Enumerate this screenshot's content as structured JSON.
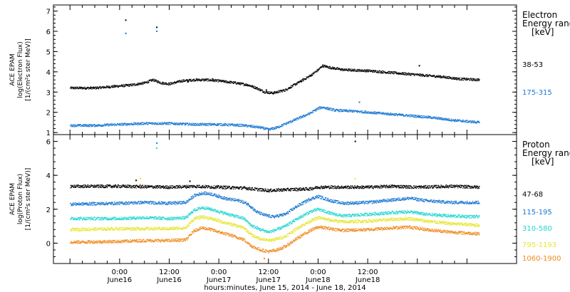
{
  "chart_data": [
    {
      "type": "scatter",
      "panel": "electron",
      "ylabel": [
        "ACE EPAM",
        "log(Electron Flux)",
        "[1/(cm²s ster MeV)]"
      ],
      "ylim": [
        0.9,
        7.3
      ],
      "yticks": [
        1,
        2,
        3,
        4,
        5,
        6,
        7
      ],
      "legend_title": [
        "Electron",
        "Energy range",
        "[keV]"
      ],
      "grid": false,
      "series": [
        {
          "name": "38-53",
          "color": "#000000",
          "points": [
            [
              -12,
              3.2
            ],
            [
              -6,
              3.2
            ],
            [
              0,
              3.3
            ],
            [
              3,
              3.35
            ],
            [
              6,
              3.45
            ],
            [
              8,
              3.6
            ],
            [
              10,
              3.45
            ],
            [
              12,
              3.4
            ],
            [
              15,
              3.55
            ],
            [
              18,
              3.6
            ],
            [
              21,
              3.6
            ],
            [
              24,
              3.55
            ],
            [
              28,
              3.45
            ],
            [
              31,
              3.35
            ],
            [
              33,
              3.2
            ],
            [
              35,
              3.0
            ],
            [
              37,
              2.95
            ],
            [
              40,
              3.1
            ],
            [
              43,
              3.45
            ],
            [
              46,
              3.8
            ],
            [
              48,
              4.1
            ],
            [
              49,
              4.3
            ],
            [
              51,
              4.2
            ],
            [
              54,
              4.1
            ],
            [
              60,
              4.05
            ],
            [
              66,
              3.95
            ],
            [
              72,
              3.85
            ],
            [
              78,
              3.75
            ],
            [
              82,
              3.65
            ],
            [
              87,
              3.6
            ]
          ],
          "outliers": [
            [
              1.5,
              6.55
            ],
            [
              9,
              6.2
            ],
            [
              16.5,
              3.5
            ],
            [
              22.5,
              3.65
            ],
            [
              35.5,
              3.1
            ],
            [
              72.5,
              4.3
            ]
          ]
        },
        {
          "name": "175-315",
          "color": "#1a78d2",
          "points": [
            [
              -12,
              1.35
            ],
            [
              -6,
              1.35
            ],
            [
              0,
              1.4
            ],
            [
              6,
              1.45
            ],
            [
              12,
              1.45
            ],
            [
              18,
              1.4
            ],
            [
              24,
              1.4
            ],
            [
              30,
              1.35
            ],
            [
              34,
              1.25
            ],
            [
              36,
              1.15
            ],
            [
              38,
              1.25
            ],
            [
              42,
              1.6
            ],
            [
              46,
              1.95
            ],
            [
              48,
              2.2
            ],
            [
              49,
              2.25
            ],
            [
              52,
              2.1
            ],
            [
              57,
              2.05
            ],
            [
              63,
              1.95
            ],
            [
              69,
              1.85
            ],
            [
              75,
              1.75
            ],
            [
              81,
              1.6
            ],
            [
              87,
              1.5
            ]
          ],
          "outliers": [
            [
              1.5,
              5.9
            ],
            [
              9,
              6.0
            ],
            [
              58,
              2.5
            ],
            [
              72.5,
              1.8
            ]
          ]
        }
      ]
    },
    {
      "type": "scatter",
      "panel": "proton",
      "ylabel": [
        "ACE EPAM",
        "log(Proton Flux)",
        "[1/(cm²s ster MeV)]"
      ],
      "ylim": [
        -1.2,
        6.4
      ],
      "yticks": [
        0,
        2,
        4,
        6
      ],
      "legend_title": [
        "Proton",
        "Energy range",
        "[keV]"
      ],
      "grid": false,
      "series": [
        {
          "name": "47-68",
          "color": "#000000",
          "points": [
            [
              -12,
              3.35
            ],
            [
              0,
              3.35
            ],
            [
              12,
              3.3
            ],
            [
              18,
              3.35
            ],
            [
              24,
              3.3
            ],
            [
              30,
              3.25
            ],
            [
              34,
              3.15
            ],
            [
              36,
              3.1
            ],
            [
              40,
              3.15
            ],
            [
              46,
              3.2
            ],
            [
              48,
              3.3
            ],
            [
              54,
              3.3
            ],
            [
              60,
              3.3
            ],
            [
              66,
              3.35
            ],
            [
              72,
              3.3
            ],
            [
              80,
              3.35
            ],
            [
              87,
              3.3
            ]
          ],
          "outliers": [
            [
              4,
              3.7
            ],
            [
              17,
              3.65
            ],
            [
              57,
              6.0
            ]
          ]
        },
        {
          "name": "115-195",
          "color": "#1a78d2",
          "points": [
            [
              -12,
              2.3
            ],
            [
              0,
              2.35
            ],
            [
              6,
              2.4
            ],
            [
              12,
              2.35
            ],
            [
              16,
              2.4
            ],
            [
              18,
              2.8
            ],
            [
              20,
              2.95
            ],
            [
              22,
              2.9
            ],
            [
              24,
              2.75
            ],
            [
              26,
              2.6
            ],
            [
              29,
              2.5
            ],
            [
              31,
              2.3
            ],
            [
              33,
              1.85
            ],
            [
              35,
              1.65
            ],
            [
              37,
              1.55
            ],
            [
              40,
              1.7
            ],
            [
              43,
              2.2
            ],
            [
              46,
              2.6
            ],
            [
              48,
              2.75
            ],
            [
              51,
              2.5
            ],
            [
              54,
              2.35
            ],
            [
              60,
              2.4
            ],
            [
              66,
              2.55
            ],
            [
              70,
              2.65
            ],
            [
              74,
              2.5
            ],
            [
              80,
              2.4
            ],
            [
              87,
              2.4
            ]
          ],
          "outliers": [
            [
              9,
              5.9
            ]
          ]
        },
        {
          "name": "310-580",
          "color": "#22d6d0",
          "points": [
            [
              -12,
              1.45
            ],
            [
              0,
              1.45
            ],
            [
              6,
              1.5
            ],
            [
              12,
              1.45
            ],
            [
              16,
              1.5
            ],
            [
              18,
              1.95
            ],
            [
              20,
              2.1
            ],
            [
              22,
              2.0
            ],
            [
              24,
              1.85
            ],
            [
              27,
              1.65
            ],
            [
              30,
              1.45
            ],
            [
              32,
              1.0
            ],
            [
              34,
              0.8
            ],
            [
              36,
              0.65
            ],
            [
              38,
              0.8
            ],
            [
              40,
              1.0
            ],
            [
              43,
              1.45
            ],
            [
              46,
              1.85
            ],
            [
              48,
              2.0
            ],
            [
              51,
              1.75
            ],
            [
              54,
              1.6
            ],
            [
              60,
              1.7
            ],
            [
              66,
              1.8
            ],
            [
              70,
              1.85
            ],
            [
              74,
              1.7
            ],
            [
              80,
              1.6
            ],
            [
              87,
              1.55
            ]
          ],
          "outliers": [
            [
              9,
              5.6
            ]
          ]
        },
        {
          "name": "795-1193",
          "color": "#e6e632",
          "points": [
            [
              -12,
              0.8
            ],
            [
              0,
              0.85
            ],
            [
              6,
              0.85
            ],
            [
              12,
              0.85
            ],
            [
              16,
              0.9
            ],
            [
              18,
              1.45
            ],
            [
              20,
              1.55
            ],
            [
              22,
              1.45
            ],
            [
              24,
              1.3
            ],
            [
              27,
              1.1
            ],
            [
              30,
              0.9
            ],
            [
              32,
              0.45
            ],
            [
              34,
              0.25
            ],
            [
              36,
              0.15
            ],
            [
              38,
              0.25
            ],
            [
              40,
              0.4
            ],
            [
              43,
              0.9
            ],
            [
              46,
              1.3
            ],
            [
              48,
              1.5
            ],
            [
              51,
              1.35
            ],
            [
              54,
              1.25
            ],
            [
              60,
              1.3
            ],
            [
              66,
              1.4
            ],
            [
              70,
              1.45
            ],
            [
              74,
              1.3
            ],
            [
              80,
              1.15
            ],
            [
              87,
              1.05
            ]
          ],
          "outliers": [
            [
              5,
              3.8
            ],
            [
              57,
              3.8
            ]
          ]
        },
        {
          "name": "1060-1900",
          "color": "#f08a1e",
          "points": [
            [
              -12,
              0.05
            ],
            [
              0,
              0.1
            ],
            [
              6,
              0.15
            ],
            [
              12,
              0.15
            ],
            [
              16,
              0.2
            ],
            [
              18,
              0.75
            ],
            [
              20,
              0.9
            ],
            [
              22,
              0.8
            ],
            [
              24,
              0.65
            ],
            [
              27,
              0.45
            ],
            [
              30,
              0.2
            ],
            [
              32,
              -0.2
            ],
            [
              34,
              -0.4
            ],
            [
              36,
              -0.5
            ],
            [
              38,
              -0.4
            ],
            [
              40,
              -0.2
            ],
            [
              43,
              0.3
            ],
            [
              46,
              0.75
            ],
            [
              48,
              0.95
            ],
            [
              51,
              0.85
            ],
            [
              54,
              0.75
            ],
            [
              60,
              0.8
            ],
            [
              66,
              0.9
            ],
            [
              70,
              0.95
            ],
            [
              74,
              0.8
            ],
            [
              80,
              0.65
            ],
            [
              87,
              0.55
            ]
          ],
          "outliers": [
            [
              5,
              3.45
            ],
            [
              35,
              -0.9
            ]
          ]
        }
      ]
    }
  ],
  "x_axis": {
    "xlim": [
      -16,
      96
    ],
    "units": "hours since June 16, 2014 00:00",
    "ticks": [
      {
        "x": 0,
        "time": "0:00",
        "date": "June16"
      },
      {
        "x": 12,
        "time": "12:00",
        "date": "June16"
      },
      {
        "x": 24,
        "time": "0:00",
        "date": "June17"
      },
      {
        "x": 36,
        "time": "12:00",
        "date": "June17"
      },
      {
        "x": 48,
        "time": "0:00",
        "date": "June18"
      },
      {
        "x": 60,
        "time": "12:00",
        "date": "June18"
      }
    ],
    "xlabel": "hours:minutes, June 15, 2014 - June 18, 2014"
  }
}
